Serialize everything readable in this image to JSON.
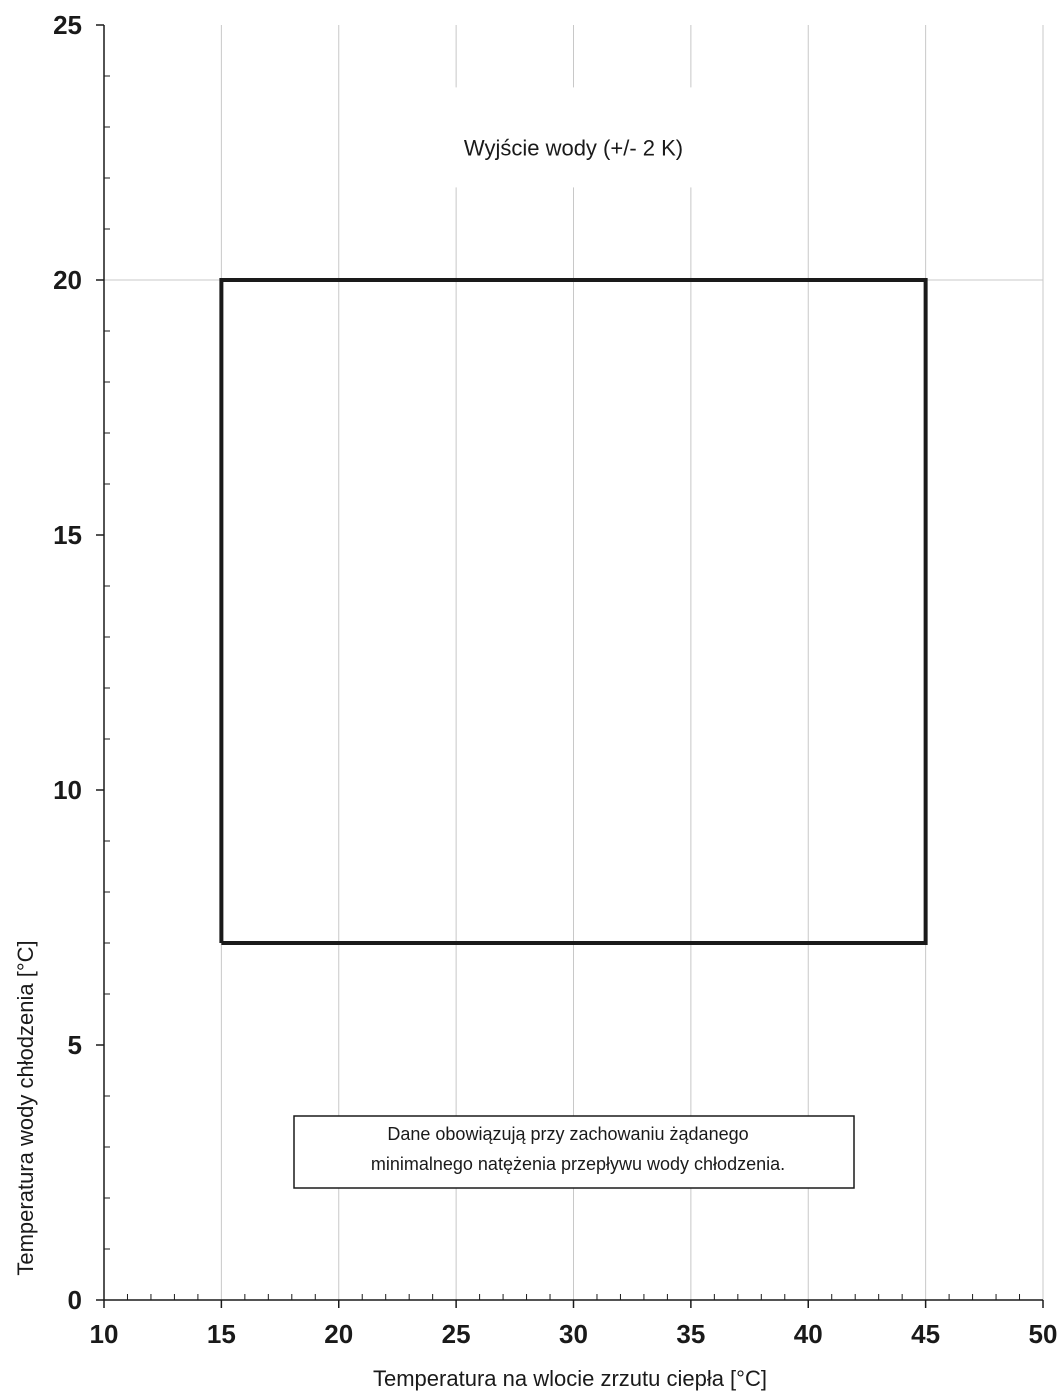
{
  "chart_data": {
    "type": "line",
    "title": "",
    "xlabel": "Temperatura na wlocie zrzutu ciepła [°C]",
    "ylabel": "Temperatura wody chłodzenia [°C]",
    "xlim": [
      10,
      50
    ],
    "ylim": [
      0,
      25
    ],
    "x_ticks": [
      10,
      15,
      20,
      25,
      30,
      35,
      40,
      45,
      50
    ],
    "x_tick_labels": [
      "10",
      "15",
      "20",
      "25",
      "30",
      "35",
      "40",
      "45",
      "50"
    ],
    "y_ticks": [
      0,
      5,
      10,
      15,
      20,
      25
    ],
    "y_tick_labels": [
      "0",
      "5",
      "10",
      "15",
      "20",
      "25"
    ],
    "grid": "vertical",
    "series": [
      {
        "x": [
          15,
          45,
          45,
          15,
          15
        ],
        "y": [
          7,
          7,
          20,
          20,
          7
        ]
      }
    ],
    "annotations": [
      {
        "text": "Wyjście wody (+/- 2 K)",
        "x": 30,
        "y": 22.6
      }
    ],
    "note_lines": [
      "Dane obowiązują przy zachowaniu żądanego",
      "minimalnego natężenia przepływu wody chłodzenia."
    ],
    "colors": {
      "envelope": "#1a1a1a",
      "grid": "#c8c8c8",
      "axis": "#1a1a1a"
    }
  }
}
